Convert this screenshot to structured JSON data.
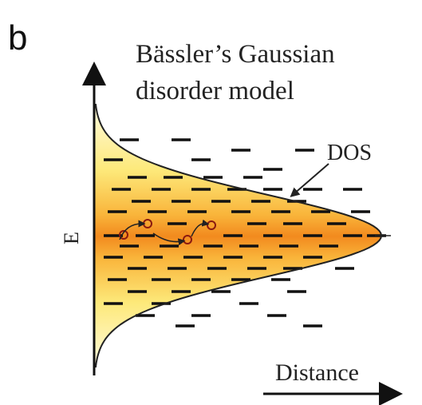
{
  "panel_label": "b",
  "title": {
    "lines": [
      "Bässler’s Gaussian",
      "disorder model"
    ]
  },
  "dos_label": "DOS",
  "y_axis_label": "E",
  "x_axis_label": "Distance"
}
